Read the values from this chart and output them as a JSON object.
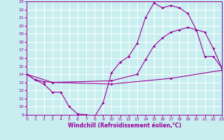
{
  "title": "",
  "xlabel": "Windchill (Refroidissement éolien,°C)",
  "bg_color": "#c8eef0",
  "grid_color": "#ffffff",
  "line_color": "#990099",
  "xmin": 0,
  "xmax": 23,
  "ymin": 9,
  "ymax": 23,
  "line1_x": [
    0,
    1,
    2,
    3,
    4,
    5,
    6,
    7,
    8,
    9,
    10,
    11,
    12,
    13,
    14,
    15,
    16,
    17,
    18,
    19,
    20,
    21,
    22,
    23
  ],
  "line1_y": [
    14.0,
    13.3,
    12.8,
    11.8,
    11.8,
    10.0,
    9.1,
    9.0,
    8.8,
    10.5,
    14.2,
    15.5,
    16.2,
    17.8,
    21.0,
    22.8,
    22.2,
    22.5,
    22.2,
    21.5,
    19.5,
    16.2,
    16.2,
    14.8
  ],
  "line2_x": [
    0,
    1,
    2,
    3,
    10,
    13,
    14,
    15,
    16,
    17,
    18,
    19,
    20,
    21,
    22,
    23
  ],
  "line2_y": [
    14.0,
    13.3,
    13.1,
    13.0,
    13.2,
    14.0,
    15.8,
    17.5,
    18.5,
    19.2,
    19.5,
    19.8,
    19.5,
    19.2,
    17.2,
    14.8
  ],
  "line3_x": [
    0,
    3,
    10,
    17,
    23
  ],
  "line3_y": [
    14.0,
    13.0,
    12.8,
    13.5,
    14.5
  ]
}
